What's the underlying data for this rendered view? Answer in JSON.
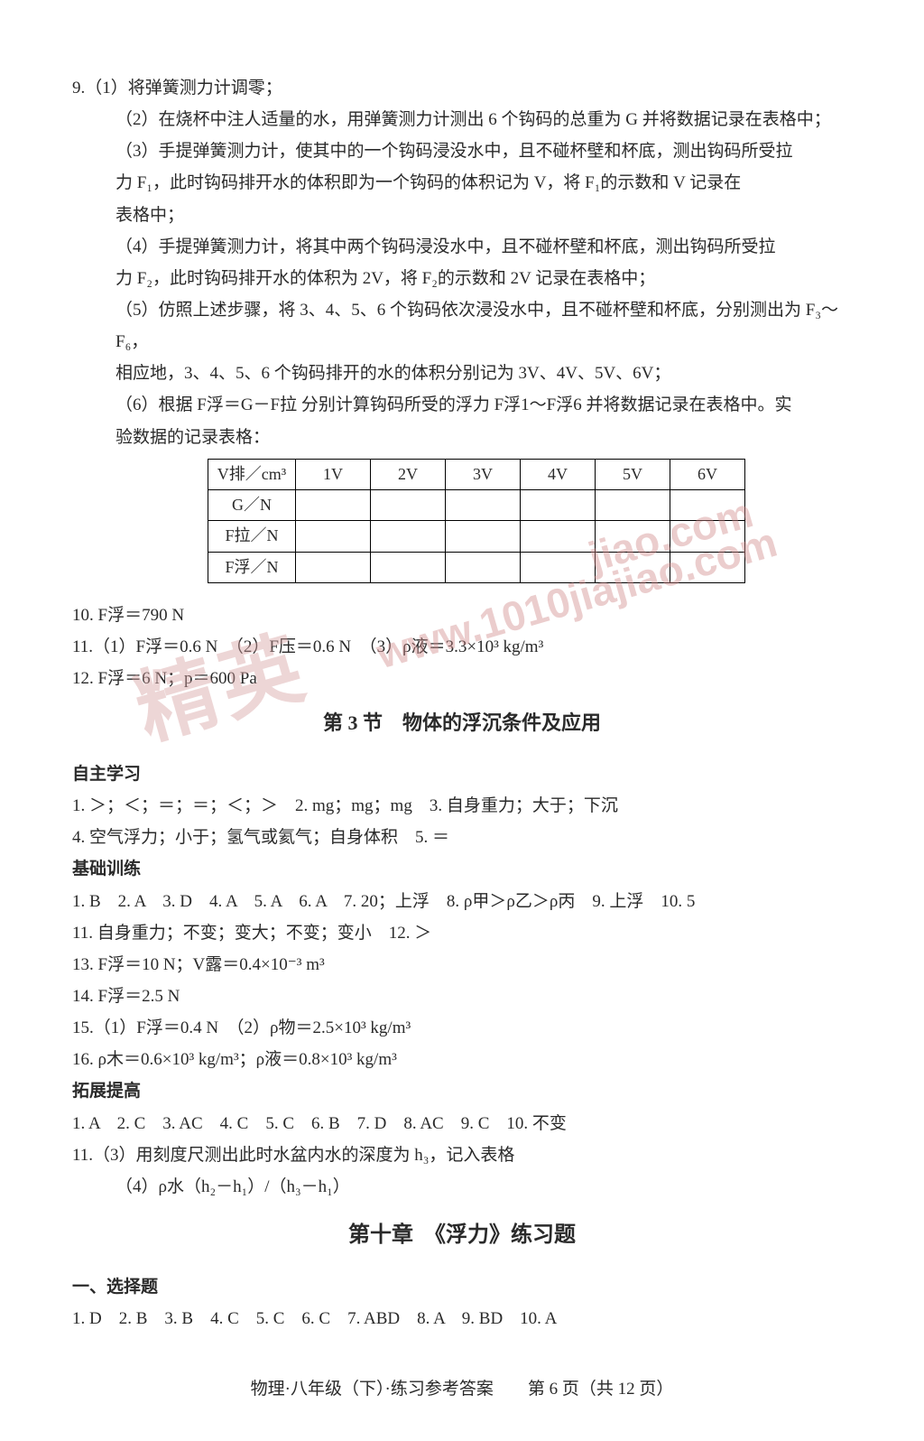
{
  "q9": {
    "lead": "9.（1）将弹簧测力计调零；",
    "p2": "（2）在烧杯中注人适量的水，用弹簧测力计测出 6 个钩码的总重为 G 并将数据记录在表格中；",
    "p3a": "（3）手提弹簧测力计，使其中的一个钩码浸没水中，且不碰杯壁和杯底，测出钩码所受拉",
    "p3b": "力 F₁，此时钩码排开水的体积即为一个钩码的体积记为 V，将 F₁的示数和 V 记录在",
    "p3c": "表格中；",
    "p4a": "（4）手提弹簧测力计，将其中两个钩码浸没水中，且不碰杯壁和杯底，测出钩码所受拉",
    "p4b": "力 F₂，此时钩码排开水的体积为 2V，将 F₂的示数和 2V 记录在表格中；",
    "p5a": "（5）仿照上述步骤，将 3、4、5、6 个钩码依次浸没水中，且不碰杯壁和杯底，分别测出为 F₃～F₆，",
    "p5b": "相应地，3、4、5、6 个钩码排开的水的体积分别记为 3V、4V、5V、6V；",
    "p6a": "（6）根据 F浮＝G－F拉 分别计算钩码所受的浮力 F浮1～F浮6 并将数据记录在表格中。实",
    "p6b": "验数据的记录表格："
  },
  "table": {
    "headers": [
      "V排／cm³",
      "1V",
      "2V",
      "3V",
      "4V",
      "5V",
      "6V"
    ],
    "rows": [
      "G／N",
      "F拉／N",
      "F浮／N"
    ]
  },
  "q10": "10. F浮＝790 N",
  "q11": "11.（1）F浮＝0.6 N　（2）F压＝0.6 N　（3）ρ液＝3.3×10³ kg/m³",
  "q12": "12. F浮＝6 N；p＝600 Pa",
  "section3": "第 3 节　物体的浮沉条件及应用",
  "self": {
    "title": "自主学习",
    "l1": "1. ＞；＜；＝；＝；＜；＞　2. mg；mg；mg　3. 自身重力；大于；下沉",
    "l2": "4. 空气浮力；小于；氢气或氦气；自身体积　5. ＝"
  },
  "basic": {
    "title": "基础训练",
    "l1": "1. B　2. A　3. D　4. A　5. A　6. A　7. 20；上浮　8. ρ甲＞ρ乙＞ρ丙　9. 上浮　10. 5",
    "l2": "11. 自身重力；不变；变大；不变；变小　12. ＞",
    "l3": "13. F浮＝10 N；V露＝0.4×10⁻³ m³",
    "l4": "14. F浮＝2.5 N",
    "l5": "15.（1）F浮＝0.4 N　（2）ρ物＝2.5×10³ kg/m³",
    "l6": "16. ρ木＝0.6×10³ kg/m³；ρ液＝0.8×10³ kg/m³"
  },
  "ext": {
    "title": "拓展提高",
    "l1": "1. A　2. C　3. AC　4. C　5. C　6. B　7. D　8. AC　9. C　10. 不变",
    "l2": "11.（3）用刻度尺测出此时水盆内水的深度为 h₃，记入表格",
    "l3": "（4）ρ水（h₂－h₁）/（h₃－h₁）"
  },
  "chapter10": "第十章　《浮力》练习题",
  "choice": {
    "title": "一、选择题",
    "l1": "1. D　2. B　3. B　4. C　5. C　6. C　7. ABD　8. A　9. BD　10. A"
  },
  "footer": "物理·八年级（下）·练习参考答案　　第 6 页（共 12 页）",
  "watermark": {
    "t1": "精英",
    "t2": "www.1010jiajiao.com",
    "t3": "jiao.com"
  },
  "colors": {
    "text": "#2a2a2a",
    "watermark": "#d38a8a",
    "background": "#ffffff",
    "border": "#000000"
  }
}
